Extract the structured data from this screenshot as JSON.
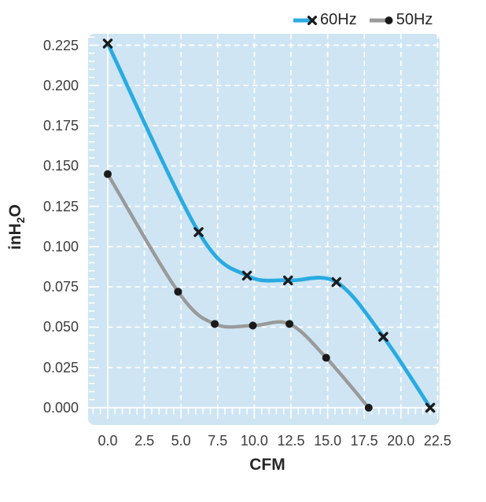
{
  "chart_data": {
    "type": "line",
    "title": "",
    "xlabel": "CFM",
    "ylabel": {
      "pre": "inH",
      "sub": "2",
      "post": "O"
    },
    "xlim": [
      0,
      22.5
    ],
    "ylim": [
      0,
      0.225
    ],
    "x_ticks": {
      "values": [
        0.0,
        2.5,
        5.0,
        7.5,
        10.0,
        12.5,
        15.0,
        17.5,
        20.0,
        22.5
      ],
      "labels": [
        "0.0",
        "2.5",
        "5.0",
        "7.5",
        "10.0",
        "12.5",
        "15.0",
        "17.5",
        "20.0",
        "22.5"
      ]
    },
    "y_ticks": {
      "values": [
        0.0,
        0.025,
        0.05,
        0.075,
        0.1,
        0.125,
        0.15,
        0.175,
        0.2,
        0.225
      ],
      "labels": [
        "0.000",
        "0.025",
        "0.050",
        "0.075",
        "0.100",
        "0.125",
        "0.150",
        "0.175",
        "0.200",
        "0.225"
      ]
    },
    "grid": "white dashed major gridlines with white minor ticks on left and bottom edges",
    "legend_position": "top-right",
    "series": [
      {
        "name": "60Hz",
        "color": "#29abe2",
        "marker": "x",
        "points": [
          [
            0,
            0.226
          ],
          [
            6.2,
            0.109
          ],
          [
            9.5,
            0.082
          ],
          [
            12.3,
            0.079
          ],
          [
            15.6,
            0.078
          ],
          [
            18.8,
            0.044
          ],
          [
            22.0,
            0.0
          ]
        ]
      },
      {
        "name": "50Hz",
        "color": "#9a9a9a",
        "marker": "dot",
        "points": [
          [
            0,
            0.145
          ],
          [
            4.8,
            0.072
          ],
          [
            7.3,
            0.052
          ],
          [
            9.9,
            0.051
          ],
          [
            12.4,
            0.052
          ],
          [
            14.9,
            0.031
          ],
          [
            17.8,
            0.0
          ]
        ]
      }
    ],
    "colors": {
      "plot_background": "#cfe5f4",
      "gridline": "#ffffff",
      "marker": "#1a1a1a",
      "tick_text": "#3c3c3c",
      "title_text": "#262626"
    }
  }
}
